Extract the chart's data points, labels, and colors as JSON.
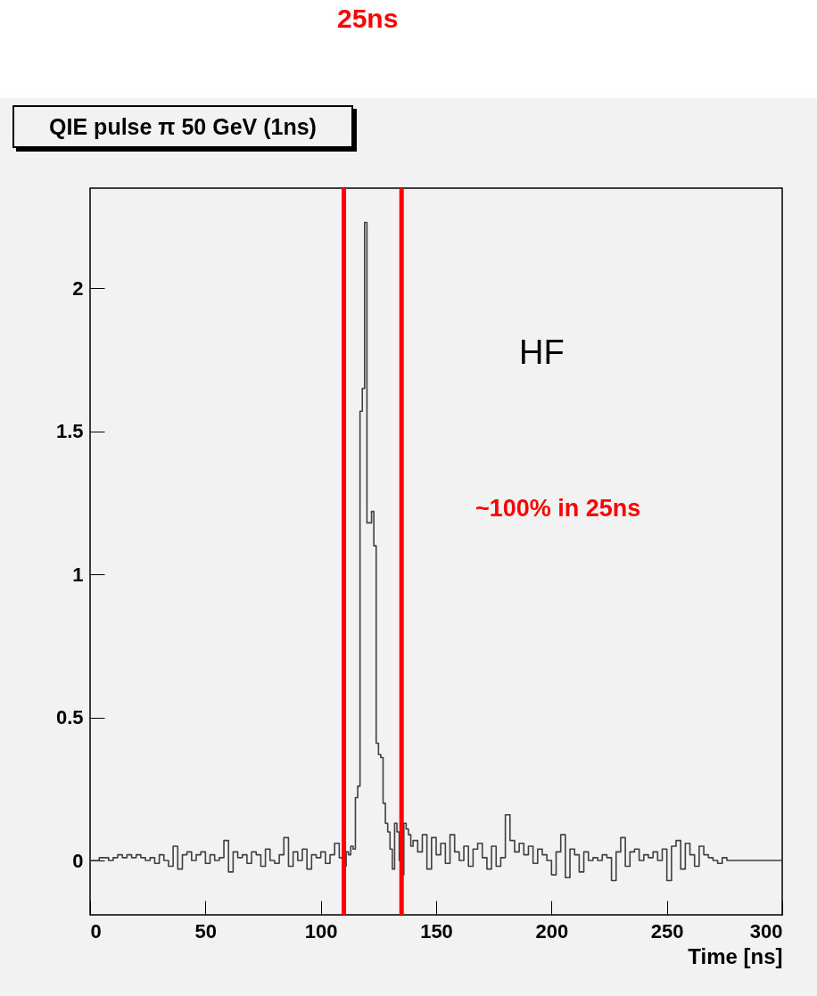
{
  "chart_data": {
    "type": "histogram",
    "title": "QIE pulse π 50 GeV (1ns)",
    "xlabel": "Time  [ns]",
    "bins": [
      0,
      2,
      4,
      6,
      8,
      10,
      12,
      14,
      16,
      18,
      20,
      22,
      24,
      26,
      28,
      30,
      32,
      34,
      36,
      38,
      40,
      42,
      44,
      46,
      48,
      50,
      52,
      54,
      56,
      58,
      60,
      62,
      64,
      66,
      68,
      70,
      72,
      74,
      76,
      78,
      80,
      82,
      84,
      86,
      88,
      90,
      92,
      94,
      96,
      98,
      100,
      102,
      104,
      106,
      108,
      110,
      111,
      112,
      113,
      114,
      115,
      116,
      117,
      118,
      119,
      120,
      121,
      122,
      123,
      124,
      125,
      126,
      127,
      128,
      129,
      130,
      131,
      132,
      133,
      134,
      135,
      136,
      137,
      138,
      139,
      140,
      142,
      144,
      146,
      148,
      150,
      152,
      154,
      156,
      158,
      160,
      162,
      164,
      166,
      168,
      170,
      172,
      174,
      176,
      178,
      180,
      182,
      184,
      186,
      188,
      190,
      192,
      194,
      196,
      198,
      200,
      202,
      204,
      206,
      208,
      210,
      212,
      214,
      216,
      218,
      220,
      222,
      224,
      226,
      228,
      230,
      232,
      234,
      236,
      238,
      240,
      242,
      244,
      246,
      248,
      250,
      252,
      254,
      256,
      258,
      260,
      262,
      264,
      266,
      268,
      270,
      272,
      274,
      276,
      300
    ],
    "values": [
      0.0,
      0.0,
      0.01,
      0.01,
      0.0,
      0.01,
      0.02,
      0.01,
      0.02,
      0.01,
      0.02,
      0.01,
      0.0,
      0.01,
      -0.01,
      0.02,
      0.0,
      -0.02,
      0.05,
      -0.03,
      0.02,
      0.03,
      0.0,
      0.02,
      0.03,
      -0.01,
      0.02,
      0.0,
      0.01,
      0.07,
      -0.04,
      0.03,
      0.01,
      0.02,
      -0.01,
      0.03,
      0.02,
      -0.02,
      0.04,
      0.0,
      -0.01,
      0.02,
      0.08,
      -0.02,
      0.03,
      0.0,
      0.04,
      -0.03,
      0.02,
      0.01,
      0.03,
      -0.01,
      0.02,
      0.06,
      0.01,
      -0.02,
      0.03,
      0.02,
      0.05,
      0.04,
      0.22,
      0.26,
      1.57,
      1.65,
      2.23,
      1.18,
      1.18,
      1.22,
      1.1,
      0.41,
      0.37,
      0.36,
      0.2,
      0.13,
      0.1,
      0.04,
      -0.03,
      0.13,
      0.1,
      0.0,
      -0.05,
      0.13,
      0.11,
      0.09,
      0.05,
      0.07,
      0.03,
      0.09,
      -0.03,
      0.08,
      0.02,
      0.06,
      -0.01,
      0.09,
      0.03,
      0.0,
      0.05,
      -0.02,
      0.04,
      0.06,
      0.01,
      -0.03,
      0.05,
      -0.02,
      0.01,
      0.16,
      0.07,
      0.03,
      0.06,
      0.02,
      0.05,
      -0.01,
      0.04,
      0.02,
      0.0,
      -0.05,
      0.03,
      0.09,
      -0.06,
      0.04,
      0.02,
      -0.04,
      0.03,
      0.0,
      0.01,
      0.0,
      0.02,
      0.01,
      -0.07,
      0.03,
      0.08,
      -0.02,
      0.03,
      0.04,
      0.0,
      0.02,
      0.01,
      0.03,
      0.0,
      0.04,
      -0.07,
      0.05,
      0.07,
      -0.03,
      0.06,
      0.02,
      -0.02,
      0.05,
      0.02,
      0.01,
      0.0,
      -0.01,
      0.01,
      0.0
    ],
    "color": "#404040",
    "xlim": [
      0,
      300
    ],
    "xticks": [
      0,
      50,
      100,
      150,
      200,
      250,
      300
    ],
    "ylim": [
      -0.19,
      2.35
    ],
    "yticks": [
      0,
      0.5,
      1,
      1.5,
      2
    ],
    "grid": false,
    "ref_lines": [
      {
        "axis": "x",
        "value": 110,
        "color": "#ff0000"
      },
      {
        "axis": "x",
        "value": 135,
        "color": "#ff0000"
      }
    ],
    "annotations": [
      "25ns",
      "HF",
      "~100% in 25ns"
    ]
  }
}
